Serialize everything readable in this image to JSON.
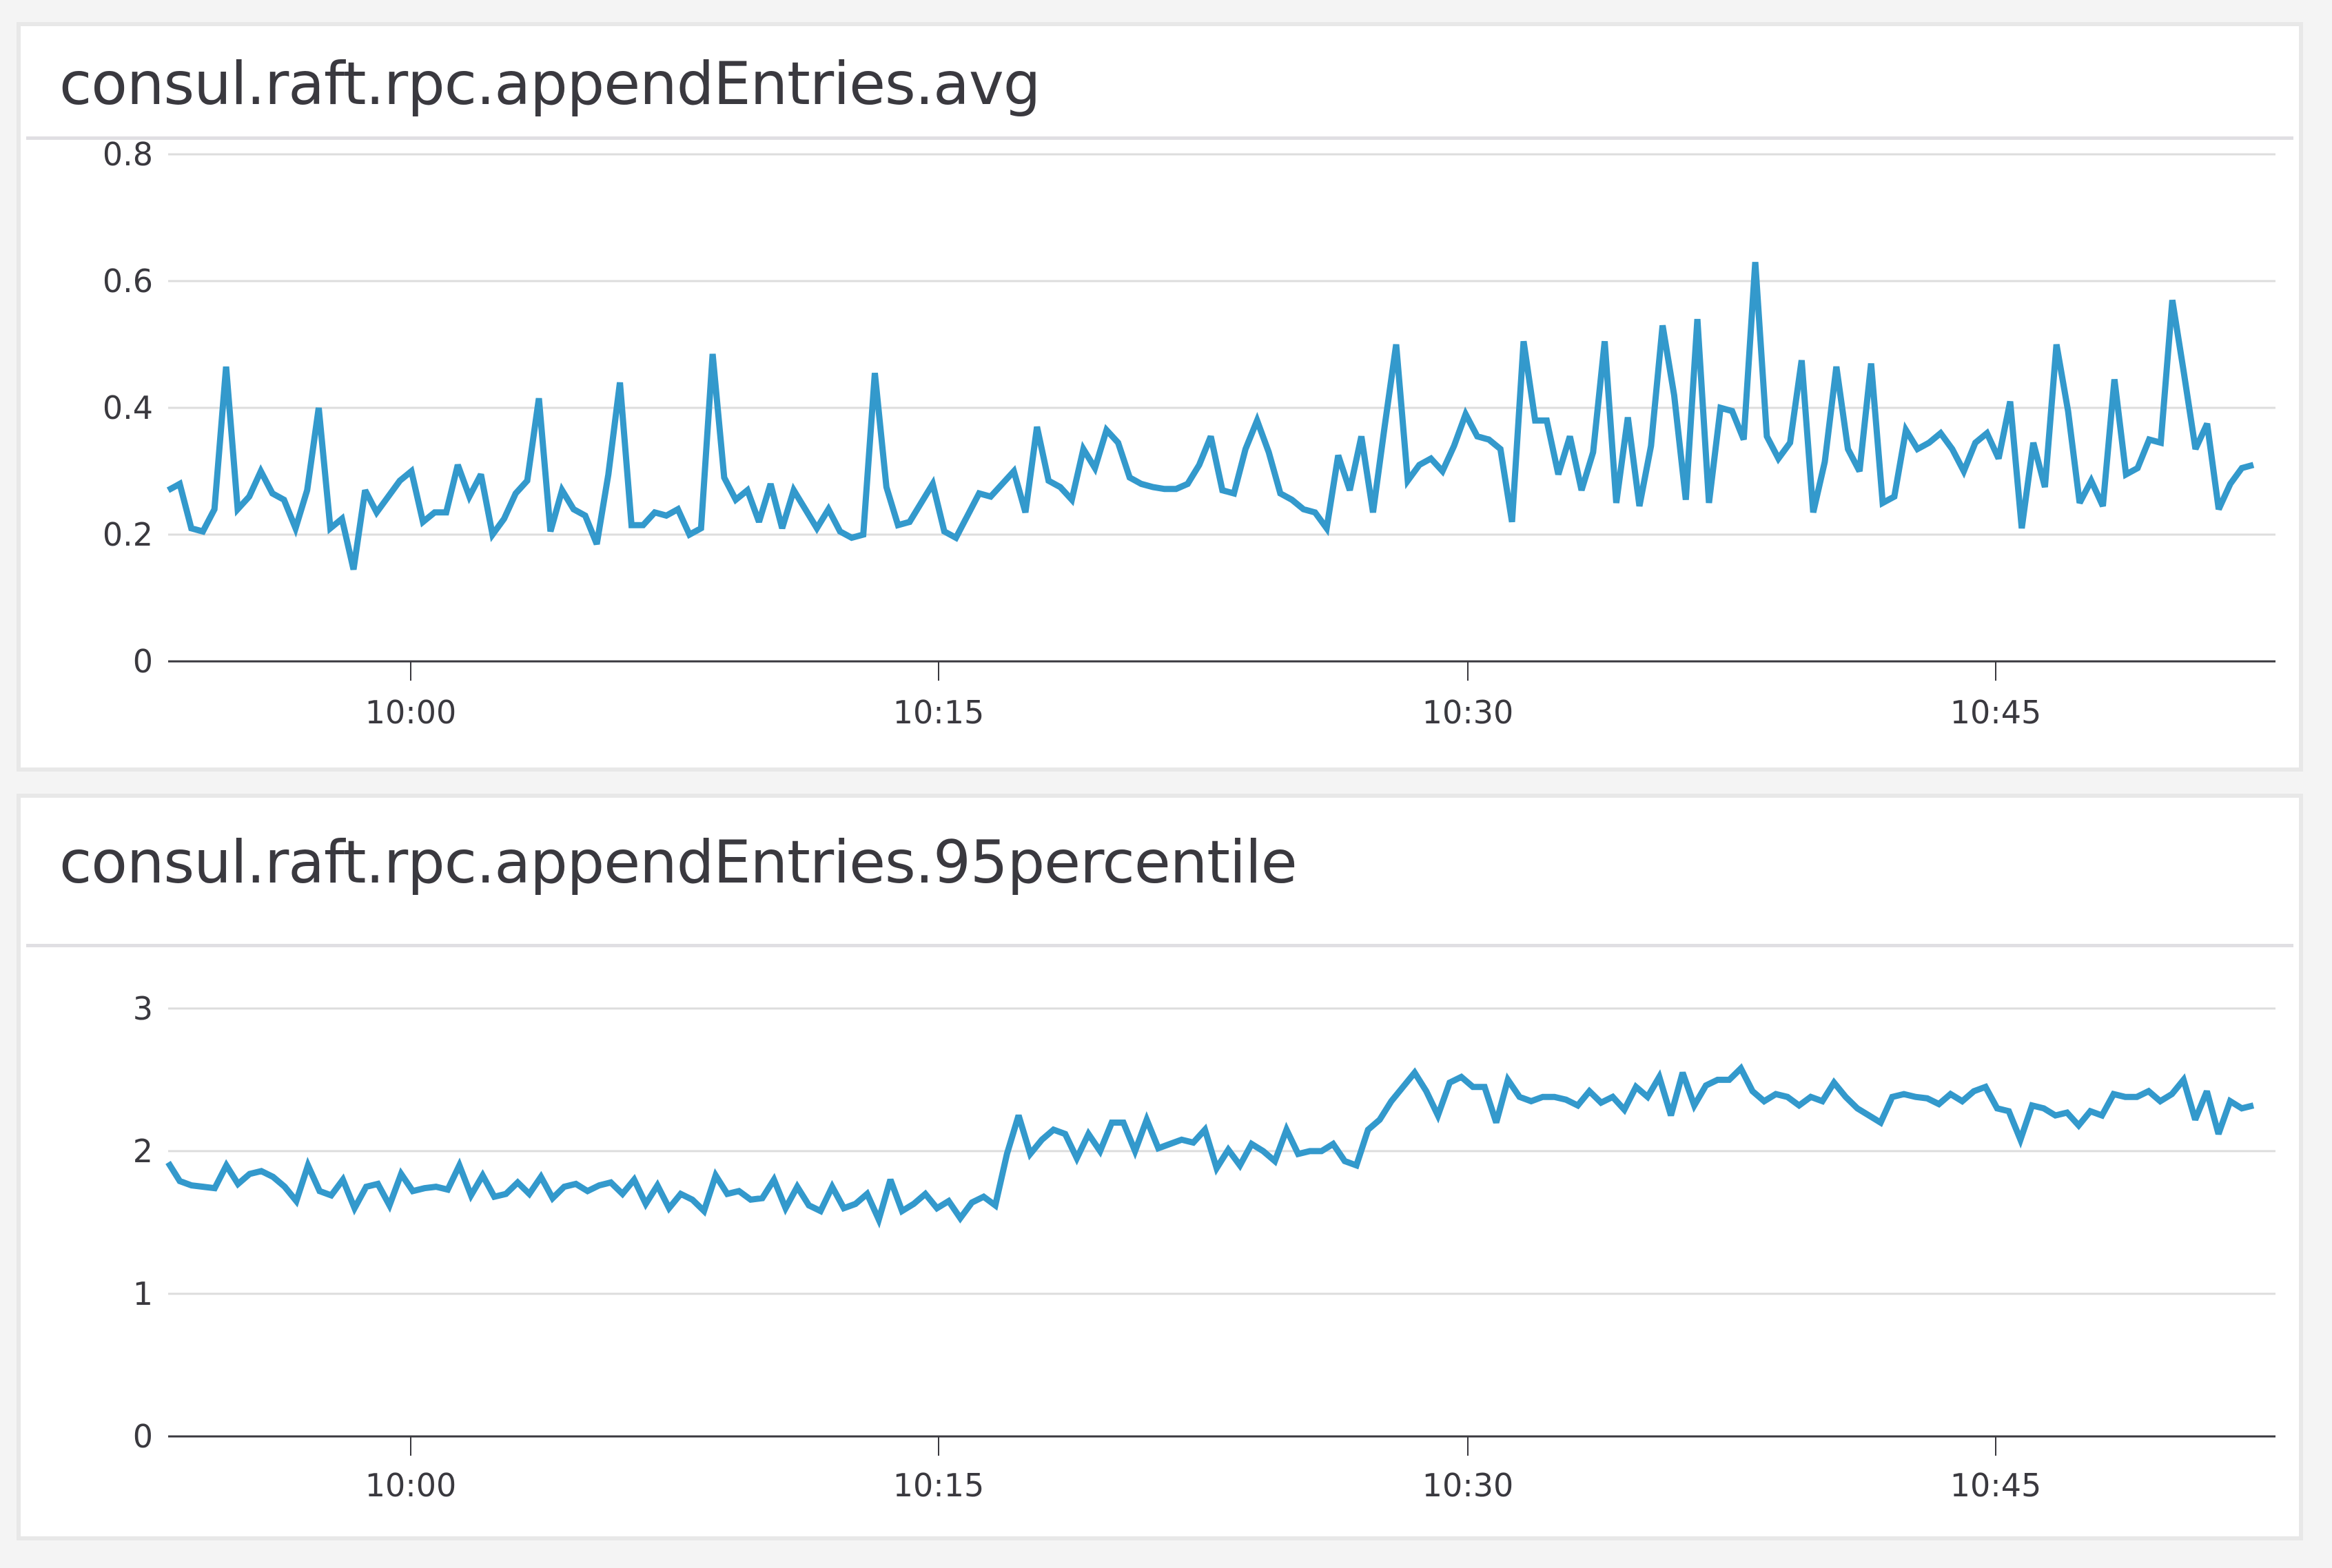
{
  "panels": [
    {
      "title": "consul.raft.rpc.appendEntries.avg",
      "y_ticks": [
        "0",
        "0.2",
        "0.4",
        "0.6",
        "0.8"
      ],
      "x_ticks": [
        "10:00",
        "10:15",
        "10:30",
        "10:45"
      ]
    },
    {
      "title": "consul.raft.rpc.appendEntries.95percentile",
      "y_ticks": [
        "0",
        "1",
        "2",
        "3"
      ],
      "x_ticks": [
        "10:00",
        "10:15",
        "10:30",
        "10:45"
      ]
    }
  ],
  "colors": {
    "series": "#3399cc",
    "grid": "#dddddd",
    "axis": "#3a393f",
    "text": "#3a393f",
    "card_border": "#e8e8e8",
    "background": "#f4f4f4"
  },
  "chart_data": [
    {
      "type": "line",
      "title": "consul.raft.rpc.appendEntries.avg",
      "xlabel": "",
      "ylabel": "",
      "ylim": [
        0,
        0.8
      ],
      "grid": true,
      "legend": "none",
      "x_range": [
        "09:53",
        "10:53"
      ],
      "x_tick_labels": [
        "10:00",
        "10:15",
        "10:30",
        "10:45"
      ],
      "y_tick_labels": [
        "0",
        "0.2",
        "0.4",
        "0.6",
        "0.8"
      ],
      "series": [
        {
          "name": "consul.raft.rpc.appendEntries.avg",
          "color": "#3399cc",
          "values": [
            0.27,
            0.28,
            0.21,
            0.205,
            0.24,
            0.465,
            0.24,
            0.26,
            0.3,
            0.265,
            0.255,
            0.21,
            0.27,
            0.4,
            0.21,
            0.225,
            0.145,
            0.27,
            0.235,
            0.26,
            0.285,
            0.3,
            0.22,
            0.235,
            0.235,
            0.31,
            0.26,
            0.295,
            0.2,
            0.225,
            0.265,
            0.285,
            0.415,
            0.205,
            0.27,
            0.24,
            0.23,
            0.185,
            0.295,
            0.44,
            0.215,
            0.215,
            0.235,
            0.23,
            0.24,
            0.2,
            0.21,
            0.485,
            0.29,
            0.255,
            0.27,
            0.22,
            0.28,
            0.21,
            0.27,
            0.24,
            0.21,
            0.24,
            0.205,
            0.195,
            0.2,
            0.455,
            0.275,
            0.215,
            0.22,
            0.25,
            0.28,
            0.205,
            0.195,
            0.23,
            0.265,
            0.26,
            0.28,
            0.3,
            0.235,
            0.37,
            0.285,
            0.275,
            0.255,
            0.335,
            0.305,
            0.365,
            0.345,
            0.29,
            0.28,
            0.275,
            0.272,
            0.272,
            0.28,
            0.31,
            0.355,
            0.27,
            0.265,
            0.335,
            0.38,
            0.33,
            0.265,
            0.255,
            0.24,
            0.235,
            0.21,
            0.325,
            0.27,
            0.355,
            0.235,
            0.37,
            0.5,
            0.285,
            0.31,
            0.32,
            0.3,
            0.34,
            0.39,
            0.355,
            0.35,
            0.335,
            0.22,
            0.505,
            0.38,
            0.38,
            0.295,
            0.355,
            0.27,
            0.33,
            0.505,
            0.25,
            0.385,
            0.245,
            0.34,
            0.53,
            0.42,
            0.255,
            0.54,
            0.25,
            0.4,
            0.395,
            0.35,
            0.63,
            0.355,
            0.32,
            0.345,
            0.475,
            0.235,
            0.315,
            0.465,
            0.335,
            0.3,
            0.47,
            0.25,
            0.26,
            0.365,
            0.335,
            0.345,
            0.36,
            0.335,
            0.3,
            0.345,
            0.36,
            0.32,
            0.41,
            0.21,
            0.345,
            0.275,
            0.5,
            0.395,
            0.25,
            0.285,
            0.245,
            0.445,
            0.295,
            0.305,
            0.35,
            0.345,
            0.57,
            0.455,
            0.335,
            0.375,
            0.24,
            0.28,
            0.305,
            0.31
          ]
        }
      ]
    },
    {
      "type": "line",
      "title": "consul.raft.rpc.appendEntries.95percentile",
      "xlabel": "",
      "ylabel": "",
      "ylim": [
        0,
        3.4
      ],
      "grid": true,
      "legend": "none",
      "x_range": [
        "09:53",
        "10:53"
      ],
      "x_tick_labels": [
        "10:00",
        "10:15",
        "10:30",
        "10:45"
      ],
      "y_tick_labels": [
        "0",
        "1",
        "2",
        "3"
      ],
      "series": [
        {
          "name": "consul.raft.rpc.appendEntries.95percentile",
          "color": "#3399cc",
          "values": [
            1.92,
            1.79,
            1.76,
            1.75,
            1.74,
            1.9,
            1.77,
            1.84,
            1.86,
            1.82,
            1.75,
            1.65,
            1.9,
            1.72,
            1.69,
            1.8,
            1.6,
            1.75,
            1.77,
            1.62,
            1.84,
            1.72,
            1.74,
            1.75,
            1.73,
            1.9,
            1.69,
            1.83,
            1.68,
            1.7,
            1.78,
            1.7,
            1.82,
            1.67,
            1.75,
            1.77,
            1.72,
            1.76,
            1.78,
            1.7,
            1.8,
            1.63,
            1.76,
            1.6,
            1.7,
            1.66,
            1.58,
            1.83,
            1.7,
            1.72,
            1.66,
            1.67,
            1.8,
            1.6,
            1.75,
            1.62,
            1.58,
            1.75,
            1.6,
            1.63,
            1.7,
            1.52,
            1.8,
            1.58,
            1.63,
            1.7,
            1.6,
            1.65,
            1.53,
            1.64,
            1.68,
            1.62,
            1.98,
            2.25,
            1.98,
            2.08,
            2.15,
            2.12,
            1.95,
            2.12,
            2.0,
            2.2,
            2.2,
            2.0,
            2.22,
            2.02,
            2.05,
            2.08,
            2.06,
            2.15,
            1.88,
            2.01,
            1.9,
            2.05,
            2.0,
            1.93,
            2.15,
            1.98,
            2.0,
            2.0,
            2.05,
            1.93,
            1.9,
            2.15,
            2.22,
            2.35,
            2.45,
            2.55,
            2.42,
            2.25,
            2.48,
            2.52,
            2.45,
            2.45,
            2.2,
            2.5,
            2.38,
            2.35,
            2.38,
            2.38,
            2.36,
            2.32,
            2.42,
            2.34,
            2.38,
            2.29,
            2.45,
            2.38,
            2.52,
            2.25,
            2.55,
            2.32,
            2.46,
            2.5,
            2.5,
            2.58,
            2.42,
            2.35,
            2.4,
            2.38,
            2.32,
            2.38,
            2.35,
            2.48,
            2.38,
            2.3,
            2.25,
            2.2,
            2.38,
            2.4,
            2.38,
            2.37,
            2.33,
            2.4,
            2.35,
            2.42,
            2.45,
            2.3,
            2.28,
            2.08,
            2.32,
            2.3,
            2.25,
            2.27,
            2.18,
            2.28,
            2.25,
            2.4,
            2.38,
            2.38,
            2.42,
            2.35,
            2.4,
            2.5,
            2.22,
            2.42,
            2.12,
            2.35,
            2.3,
            2.32
          ]
        }
      ]
    }
  ]
}
